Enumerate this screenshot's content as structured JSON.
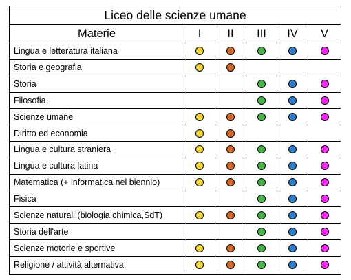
{
  "title": "Liceo delle scienze umane",
  "header": {
    "subject_label": "Materie",
    "years": [
      "I",
      "II",
      "III",
      "IV",
      "V"
    ]
  },
  "colors": {
    "I": "#f6d63a",
    "II": "#d2692c",
    "III": "#46b64a",
    "IV": "#2f7dc6",
    "V": "#ee28ee"
  },
  "rows": [
    {
      "subject": "Lingua e letteratura italiana",
      "years": [
        true,
        true,
        true,
        true,
        true
      ]
    },
    {
      "subject": "Storia e geografia",
      "years": [
        true,
        true,
        false,
        false,
        false
      ]
    },
    {
      "subject": "Storia",
      "years": [
        false,
        false,
        true,
        true,
        true
      ]
    },
    {
      "subject": "Filosofia",
      "years": [
        false,
        false,
        true,
        true,
        true
      ]
    },
    {
      "subject": "Scienze umane",
      "years": [
        true,
        true,
        true,
        true,
        true
      ]
    },
    {
      "subject": "Diritto ed economia",
      "years": [
        true,
        true,
        false,
        false,
        false
      ]
    },
    {
      "subject": "Lingua e cultura straniera",
      "years": [
        true,
        true,
        true,
        true,
        true
      ]
    },
    {
      "subject": "Lingua e cultura latina",
      "years": [
        true,
        true,
        true,
        true,
        true
      ]
    },
    {
      "subject": "Matematica (+ informatica nel biennio)",
      "years": [
        true,
        true,
        true,
        true,
        true
      ]
    },
    {
      "subject": "Fisica",
      "years": [
        false,
        false,
        true,
        true,
        true
      ]
    },
    {
      "subject": "Scienze naturali (biologia,chimica,SdT)",
      "years": [
        true,
        true,
        true,
        true,
        true
      ]
    },
    {
      "subject": "Storia dell'arte",
      "years": [
        false,
        false,
        true,
        true,
        true
      ]
    },
    {
      "subject": "Scienze motorie e sportive",
      "years": [
        true,
        true,
        true,
        true,
        true
      ]
    },
    {
      "subject": "Religione / attività alternativa",
      "years": [
        true,
        true,
        true,
        true,
        true
      ]
    }
  ]
}
